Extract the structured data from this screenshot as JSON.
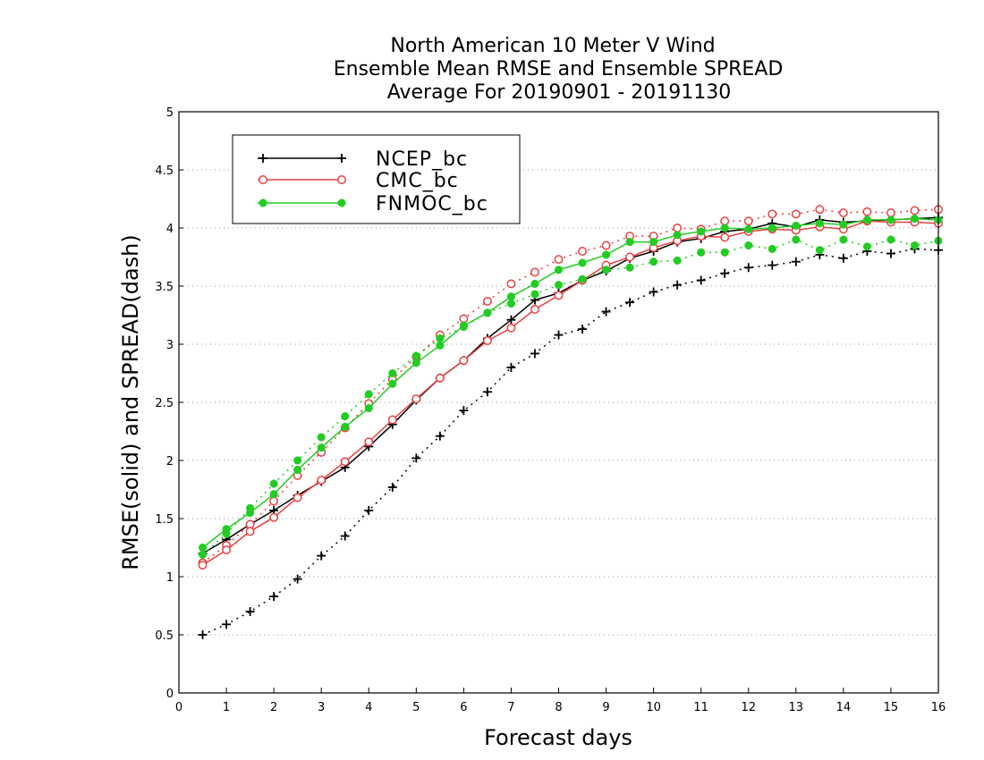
{
  "chart_data": {
    "type": "line",
    "title": [
      "North American 10 Meter V Wind",
      "Ensemble Mean RMSE and Ensemble SPREAD",
      "Average For 20190901 - 20191130"
    ],
    "xlabel": "Forecast days",
    "ylabel": "RMSE(solid) and SPREAD(dash)",
    "xlim": [
      0,
      16
    ],
    "ylim": [
      0,
      5
    ],
    "xticks": [
      "0",
      "1",
      "2",
      "3",
      "4",
      "5",
      "6",
      "7",
      "8",
      "9",
      "10",
      "11",
      "12",
      "13",
      "14",
      "15",
      "16"
    ],
    "yticks": [
      "0",
      "0.5",
      "1",
      "1.5",
      "2",
      "2.5",
      "3",
      "3.5",
      "4",
      "4.5",
      "5"
    ],
    "grid": true,
    "legend_position": "top-left",
    "x": [
      0.5,
      1,
      1.5,
      2,
      2.5,
      3,
      3.5,
      4,
      4.5,
      5,
      5.5,
      6,
      6.5,
      7,
      7.5,
      8,
      8.5,
      9,
      9.5,
      10,
      10.5,
      11,
      11.5,
      12,
      12.5,
      13,
      13.5,
      14,
      14.5,
      15,
      15.5,
      16
    ],
    "series": [
      {
        "name": "NCEP_bc",
        "color": "#000000",
        "marker": "plus",
        "rmse": [
          1.2,
          1.32,
          1.45,
          1.57,
          1.7,
          1.82,
          1.94,
          2.12,
          2.31,
          2.52,
          2.71,
          2.86,
          3.05,
          3.21,
          3.38,
          3.44,
          3.55,
          3.63,
          3.74,
          3.8,
          3.88,
          3.91,
          3.97,
          3.99,
          4.04,
          4.01,
          4.07,
          4.05,
          4.06,
          4.07,
          4.08,
          4.09
        ],
        "spread": [
          0.5,
          0.59,
          0.7,
          0.83,
          0.98,
          1.18,
          1.35,
          1.57,
          1.77,
          2.02,
          2.21,
          2.43,
          2.59,
          2.8,
          2.92,
          3.08,
          3.13,
          3.28,
          3.36,
          3.45,
          3.51,
          3.55,
          3.61,
          3.66,
          3.68,
          3.71,
          3.77,
          3.74,
          3.8,
          3.78,
          3.82,
          3.81
        ]
      },
      {
        "name": "CMC_bc",
        "color": "#e84040",
        "marker": "open-circle",
        "rmse": [
          1.1,
          1.23,
          1.39,
          1.51,
          1.68,
          1.83,
          1.99,
          2.16,
          2.35,
          2.53,
          2.71,
          2.86,
          3.03,
          3.14,
          3.3,
          3.42,
          3.55,
          3.68,
          3.75,
          3.83,
          3.89,
          3.93,
          3.92,
          3.97,
          3.99,
          3.98,
          4.01,
          3.99,
          4.06,
          4.05,
          4.05,
          4.04
        ],
        "spread": [
          1.12,
          1.27,
          1.45,
          1.65,
          1.87,
          2.07,
          2.28,
          2.49,
          2.7,
          2.89,
          3.08,
          3.22,
          3.37,
          3.52,
          3.62,
          3.73,
          3.8,
          3.85,
          3.93,
          3.93,
          4.0,
          3.99,
          4.06,
          4.06,
          4.12,
          4.12,
          4.16,
          4.13,
          4.14,
          4.13,
          4.15,
          4.16
        ]
      },
      {
        "name": "FNMOC_bc",
        "color": "#22cc22",
        "marker": "filled-circle",
        "rmse": [
          1.25,
          1.41,
          1.55,
          1.71,
          1.92,
          2.11,
          2.29,
          2.45,
          2.66,
          2.84,
          2.99,
          3.16,
          3.27,
          3.41,
          3.52,
          3.64,
          3.7,
          3.77,
          3.88,
          3.88,
          3.94,
          3.97,
          4.0,
          3.99,
          4.0,
          4.02,
          4.04,
          4.03,
          4.07,
          4.07,
          4.08,
          4.07
        ],
        "spread": [
          1.19,
          1.37,
          1.59,
          1.8,
          2.0,
          2.2,
          2.38,
          2.57,
          2.75,
          2.9,
          3.05,
          3.15,
          3.27,
          3.35,
          3.43,
          3.51,
          3.56,
          3.64,
          3.66,
          3.71,
          3.72,
          3.79,
          3.79,
          3.85,
          3.82,
          3.9,
          3.81,
          3.9,
          3.84,
          3.9,
          3.85,
          3.89
        ]
      }
    ]
  }
}
